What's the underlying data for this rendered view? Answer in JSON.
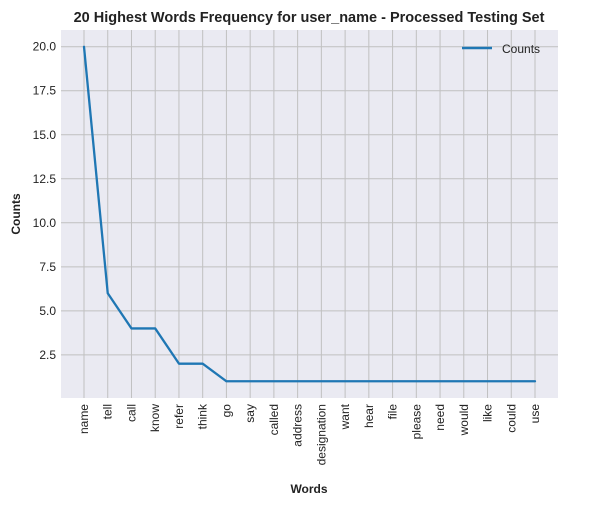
{
  "chart_data": {
    "type": "line",
    "title": "20 Highest Words Frequency for user_name - Processed Testing Set",
    "xlabel": "Words",
    "ylabel": "Counts",
    "categories": [
      "name",
      "tell",
      "call",
      "know",
      "refer",
      "think",
      "go",
      "say",
      "called",
      "address",
      "designation",
      "want",
      "hear",
      "file",
      "please",
      "need",
      "would",
      "like",
      "could",
      "use"
    ],
    "series": [
      {
        "name": "Counts",
        "values": [
          20,
          6,
          4,
          4,
          2,
          2,
          1,
          1,
          1,
          1,
          1,
          1,
          1,
          1,
          1,
          1,
          1,
          1,
          1,
          1
        ]
      }
    ],
    "ylim": [
      0.05,
      20.95
    ],
    "yticks": [
      2.5,
      5.0,
      7.5,
      10.0,
      12.5,
      15.0,
      17.5,
      20.0
    ],
    "ytick_labels": [
      "2.5",
      "5.0",
      "7.5",
      "10.0",
      "12.5",
      "15.0",
      "17.5",
      "20.0"
    ],
    "grid": true,
    "legend_position": "top-right",
    "colors": {
      "line": "#1f77b4",
      "plot_background": "#eaeaf2",
      "grid": "#c0c0c0",
      "text": "#222222"
    }
  }
}
